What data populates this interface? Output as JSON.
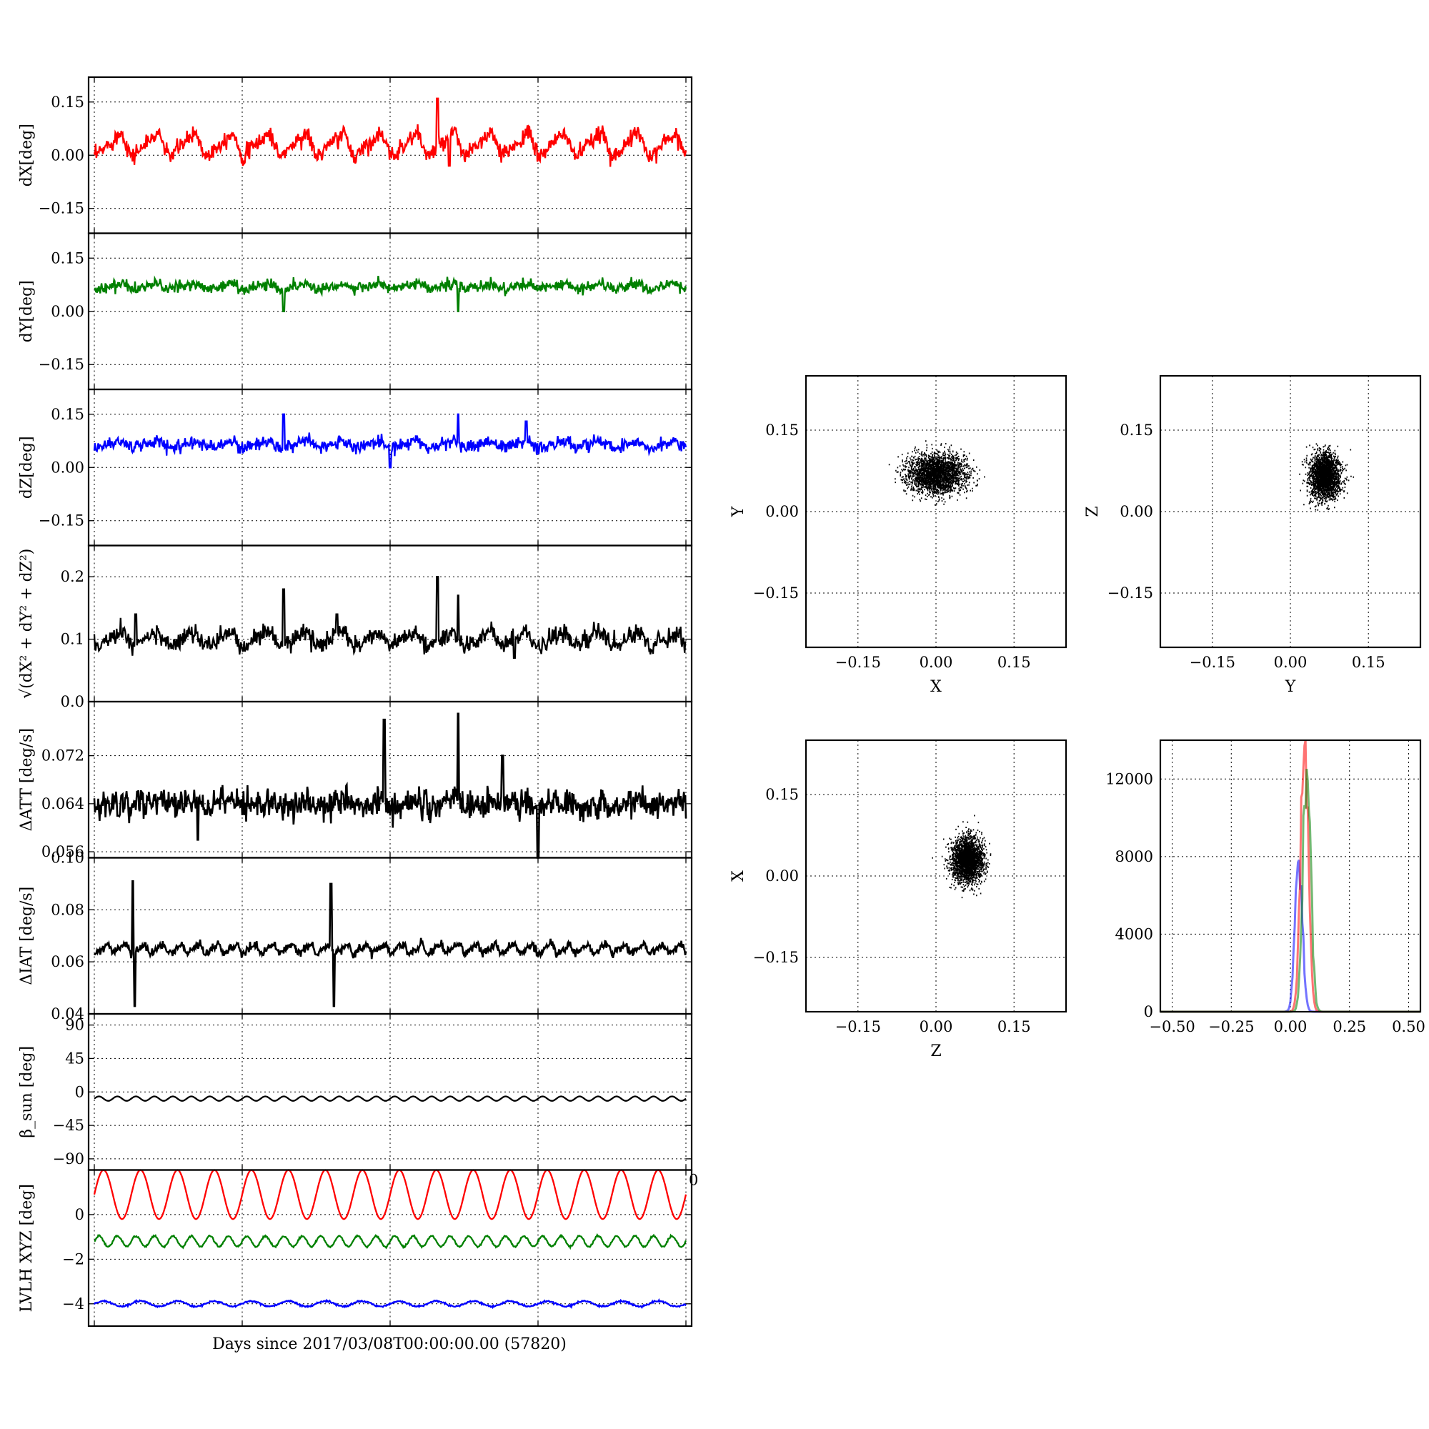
{
  "figure": {
    "xlabel": "Days since 2017/03/08T00:00:00.00 (57820)"
  },
  "chart_data": [
    {
      "id": "dX",
      "type": "line",
      "ylabel": "dX[deg]",
      "ylim": [
        -0.22,
        0.22
      ],
      "yticks": [
        -0.15,
        0.0,
        0.15
      ],
      "ytick_labels": [
        "−0.15",
        "0.00",
        "0.15"
      ],
      "xlim": [
        0,
        1
      ],
      "grid": true,
      "series": [
        {
          "color": "#ff0000",
          "base": 0.03,
          "amp": 0.035,
          "cycles": 16,
          "noise": 0.012,
          "spikes": [
            [
              0.58,
              0.16
            ],
            [
              0.6,
              -0.03
            ]
          ]
        }
      ]
    },
    {
      "id": "dY",
      "type": "line",
      "ylabel": "dY[deg]",
      "ylim": [
        -0.22,
        0.22
      ],
      "yticks": [
        -0.15,
        0.0,
        0.15
      ],
      "ytick_labels": [
        "−0.15",
        "0.00",
        "0.15"
      ],
      "xlim": [
        0,
        1
      ],
      "grid": true,
      "series": [
        {
          "color": "#008000",
          "base": 0.07,
          "amp": 0.008,
          "cycles": 16,
          "noise": 0.008,
          "spikes": [
            [
              0.32,
              0.0
            ],
            [
              0.615,
              0.0
            ]
          ]
        }
      ]
    },
    {
      "id": "dZ",
      "type": "line",
      "ylabel": "dZ[deg]",
      "ylim": [
        -0.22,
        0.22
      ],
      "yticks": [
        -0.15,
        0.0,
        0.15
      ],
      "ytick_labels": [
        "−0.15",
        "0.00",
        "0.15"
      ],
      "xlim": [
        0,
        1
      ],
      "grid": true,
      "series": [
        {
          "color": "#0000ff",
          "base": 0.065,
          "amp": 0.01,
          "cycles": 16,
          "noise": 0.009,
          "spikes": [
            [
              0.32,
              0.15
            ],
            [
              0.5,
              0.0
            ],
            [
              0.615,
              0.15
            ],
            [
              0.73,
              0.13
            ]
          ]
        }
      ]
    },
    {
      "id": "rss",
      "type": "line",
      "ylabel_svg": "√(dX² + dY² + dZ²)",
      "ylim": [
        0.0,
        0.25
      ],
      "yticks": [
        0.0,
        0.1,
        0.2
      ],
      "ytick_labels": [
        "0.0",
        "0.1",
        "0.2"
      ],
      "xlim": [
        0,
        1
      ],
      "grid": true,
      "series": [
        {
          "color": "#000000",
          "base": 0.1,
          "amp": 0.012,
          "cycles": 16,
          "noise": 0.007,
          "spikes": [
            [
              0.32,
              0.18
            ],
            [
              0.58,
              0.2
            ],
            [
              0.615,
              0.17
            ],
            [
              0.07,
              0.14
            ],
            [
              0.41,
              0.14
            ],
            [
              0.71,
              0.07
            ]
          ]
        }
      ]
    },
    {
      "id": "datt",
      "type": "line",
      "ylabel": "ΔATT [deg/s]",
      "ylim": [
        0.055,
        0.081
      ],
      "yticks": [
        0.056,
        0.064,
        0.072
      ],
      "ytick_labels": [
        "0.056",
        "0.064",
        "0.072"
      ],
      "xlim": [
        0,
        1
      ],
      "grid": true,
      "series": [
        {
          "color": "#000000",
          "base": 0.064,
          "amp": 0.0006,
          "cycles": 16,
          "noise": 0.0012,
          "spikes": [
            [
              0.49,
              0.078
            ],
            [
              0.615,
              0.079
            ],
            [
              0.69,
              0.072
            ],
            [
              0.175,
              0.058
            ],
            [
              0.75,
              0.055
            ],
            [
              0.04,
              0.062
            ]
          ]
        }
      ]
    },
    {
      "id": "diat",
      "type": "line",
      "ylabel": "ΔIAT [deg/s]",
      "ylim": [
        0.04,
        0.1
      ],
      "yticks": [
        0.04,
        0.06,
        0.08,
        0.1
      ],
      "ytick_labels": [
        "0.04",
        "0.06",
        "0.08",
        "0.10"
      ],
      "xlim": [
        0,
        1
      ],
      "grid": true,
      "series": [
        {
          "color": "#000000",
          "base": 0.065,
          "amp": 0.002,
          "cycles": 32,
          "noise": 0.0008,
          "spikes": [
            [
              0.065,
              0.091
            ],
            [
              0.068,
              0.043
            ],
            [
              0.4,
              0.09
            ],
            [
              0.405,
              0.043
            ]
          ]
        }
      ]
    },
    {
      "id": "beta",
      "type": "line",
      "ylabel": "β_sun [deg]",
      "ylim": [
        -105,
        105
      ],
      "yticks": [
        -90,
        -45,
        0,
        45,
        90
      ],
      "ytick_labels": [
        "−90",
        "−45",
        "0",
        "45",
        "90"
      ],
      "xlim": [
        0,
        1
      ],
      "grid": true,
      "series": [
        {
          "color": "#000000",
          "base": -9,
          "amp": 1.5,
          "cycles": 32,
          "noise": 0.0,
          "spikes": []
        }
      ]
    },
    {
      "id": "lvlh",
      "type": "line",
      "ylabel": "LVLH XYZ [deg]",
      "ylim": [
        -5,
        2
      ],
      "yticks": [
        -4,
        -2,
        0,
        2
      ],
      "ytick_labels": [
        "−4",
        "−2",
        "0",
        ""
      ],
      "xlim": [
        0,
        1
      ],
      "grid": true,
      "corner_label": "0",
      "series": [
        {
          "color": "#ff0000",
          "base": 0.9,
          "amp": 0.55,
          "cycles": 16,
          "noise": 0.0,
          "spikes": []
        },
        {
          "color": "#008000",
          "base": -1.2,
          "amp": 0.12,
          "cycles": 32,
          "noise": 0.02,
          "spikes": []
        },
        {
          "color": "#0000ff",
          "base": -4.0,
          "amp": 0.06,
          "cycles": 16,
          "noise": 0.02,
          "spikes": []
        }
      ]
    },
    {
      "id": "xy",
      "type": "scatter",
      "xlabel": "X",
      "ylabel": "Y",
      "xlim": [
        -0.25,
        0.25
      ],
      "ylim": [
        -0.25,
        0.25
      ],
      "ticks": [
        -0.15,
        0.0,
        0.15
      ],
      "tick_labels": [
        "−0.15",
        "0.00",
        "0.15"
      ],
      "center": [
        0.0,
        0.07
      ],
      "spread": [
        0.028,
        0.018
      ],
      "grid": true
    },
    {
      "id": "yz",
      "type": "scatter",
      "xlabel": "Y",
      "ylabel": "Z",
      "xlim": [
        -0.25,
        0.25
      ],
      "ylim": [
        -0.25,
        0.25
      ],
      "ticks": [
        -0.15,
        0.0,
        0.15
      ],
      "tick_labels": [
        "−0.15",
        "0.00",
        "0.15"
      ],
      "center": [
        0.065,
        0.065
      ],
      "spread": [
        0.014,
        0.02
      ],
      "grid": true
    },
    {
      "id": "zx",
      "type": "scatter",
      "xlabel": "Z",
      "ylabel": "X",
      "xlim": [
        -0.25,
        0.25
      ],
      "ylim": [
        -0.25,
        0.25
      ],
      "ticks": [
        -0.15,
        0.0,
        0.15
      ],
      "tick_labels": [
        "−0.15",
        "0.00",
        "0.15"
      ],
      "center": [
        0.06,
        0.03
      ],
      "spread": [
        0.015,
        0.02
      ],
      "grid": true
    },
    {
      "id": "hist",
      "type": "line",
      "subtype": "histogram",
      "xlim": [
        -0.55,
        0.55
      ],
      "ylim": [
        0,
        14000
      ],
      "xticks": [
        -0.5,
        -0.25,
        0.0,
        0.25,
        0.5
      ],
      "xtick_labels": [
        "−0.50",
        "−0.25",
        "0.00",
        "0.25",
        "0.50"
      ],
      "yticks": [
        0,
        4000,
        8000,
        12000
      ],
      "ytick_labels": [
        "0",
        "4000",
        "8000",
        "12000"
      ],
      "grid": true,
      "series": [
        {
          "color": "#0000ff",
          "center": 0.035,
          "width": 0.015,
          "peak": 8400
        },
        {
          "color": "#ff0000",
          "center": 0.06,
          "width": 0.016,
          "peak": 14000
        },
        {
          "color": "#008000",
          "center": 0.07,
          "width": 0.016,
          "peak": 13200
        }
      ]
    }
  ]
}
